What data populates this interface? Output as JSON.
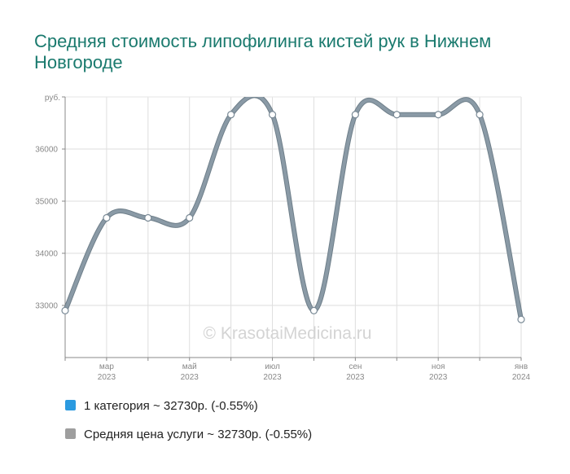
{
  "chart_data": {
    "type": "line",
    "title": "Средняя стоимость липофилинга кистей рук в Нижнем Новгороде",
    "y_unit_label": "руб.",
    "y_ticks": [
      33000,
      34000,
      35000,
      36000
    ],
    "ylim": [
      32000,
      37000
    ],
    "x_ticks": [
      {
        "month": "мар",
        "year": "2023"
      },
      {
        "month": "май",
        "year": "2023"
      },
      {
        "month": "июл",
        "year": "2023"
      },
      {
        "month": "сен",
        "year": "2023"
      },
      {
        "month": "ноя",
        "year": "2023"
      },
      {
        "month": "янв",
        "year": "2024"
      }
    ],
    "x": [
      "2023-02",
      "2023-03",
      "2023-04",
      "2023-05",
      "2023-06",
      "2023-07",
      "2023-08",
      "2023-09",
      "2023-10",
      "2023-11",
      "2023-12",
      "2024-01"
    ],
    "series": [
      {
        "name": "Средняя цена услуги",
        "color": "#8a9aa6",
        "values": [
          32900,
          34680,
          34680,
          34680,
          36660,
          36660,
          32900,
          36660,
          36660,
          36660,
          36660,
          32730
        ]
      }
    ],
    "watermark": "© KrasotaiMedicina.ru",
    "grid": true
  },
  "legend": [
    {
      "label": "1 категория ~ 32730р. (-0.55%)",
      "color": "#2b9ae0"
    },
    {
      "label": "Средняя цена услуги ~ 32730р. (-0.55%)",
      "color": "#9e9e9e"
    }
  ]
}
